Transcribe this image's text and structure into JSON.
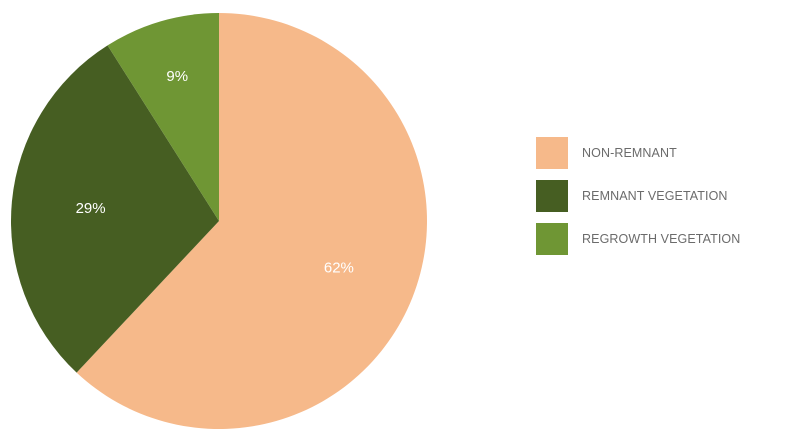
{
  "chart_data": {
    "type": "pie",
    "categories": [
      "NON-REMNANT",
      "REMNANT VEGETATION",
      "REGROWTH VEGETATION"
    ],
    "values": [
      62,
      29,
      9
    ],
    "labels": [
      "62%",
      "29%",
      "9%"
    ],
    "colors": [
      "#f6b98a",
      "#465e22",
      "#6f9634"
    ],
    "legend_position": "right",
    "start": "top, clockwise"
  }
}
